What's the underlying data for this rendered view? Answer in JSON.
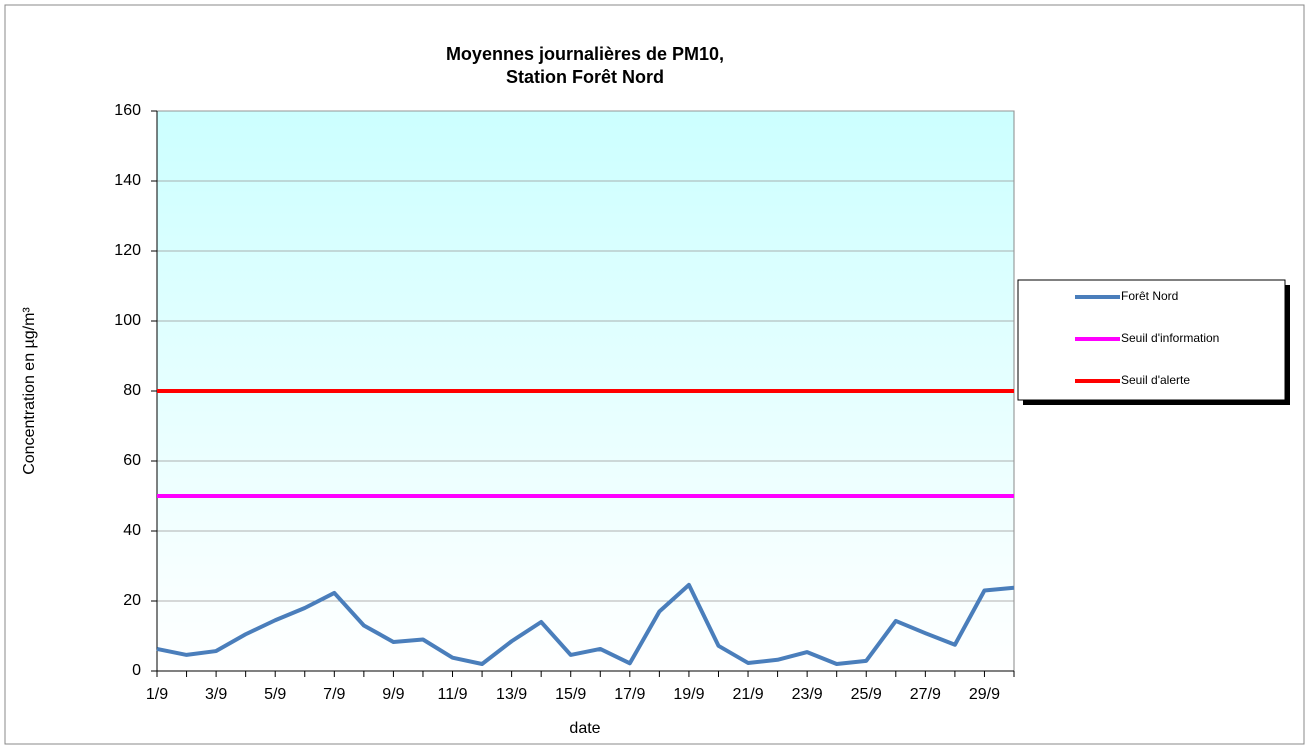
{
  "chart_data": {
    "type": "line",
    "title": [
      "Moyennes journalières de PM10,",
      "Station Forêt Nord"
    ],
    "x_label": "date",
    "y_label": "Concentration en µg/m³",
    "categories": [
      "1/9",
      null,
      "3/9",
      null,
      "5/9",
      null,
      "7/9",
      null,
      "9/9",
      null,
      "11/9",
      null,
      "13/9",
      null,
      "15/9",
      null,
      "17/9",
      null,
      "19/9",
      null,
      "21/9",
      null,
      "23/9",
      null,
      "25/9",
      null,
      "27/9",
      null,
      "29/9",
      null
    ],
    "series": [
      {
        "name": "Forêt Nord",
        "color": "#4a7ebb",
        "values": [
          6.3,
          4.6,
          5.7,
          10.5,
          14.5,
          18,
          22.3,
          13,
          8.3,
          9,
          3.8,
          2,
          8.5,
          14,
          4.6,
          6.3,
          2.2,
          17,
          24.6,
          7.2,
          2.3,
          3.2,
          5.4,
          2,
          2.9,
          14.3,
          10.8,
          7.5,
          23,
          23.8
        ]
      },
      {
        "name": "Seuil d'information",
        "color": "#ff00ff",
        "values": [
          50,
          50,
          50,
          50,
          50,
          50,
          50,
          50,
          50,
          50,
          50,
          50,
          50,
          50,
          50,
          50,
          50,
          50,
          50,
          50,
          50,
          50,
          50,
          50,
          50,
          50,
          50,
          50,
          50,
          50
        ]
      },
      {
        "name": "Seuil d'alerte",
        "color": "#ff0000",
        "values": [
          80,
          80,
          80,
          80,
          80,
          80,
          80,
          80,
          80,
          80,
          80,
          80,
          80,
          80,
          80,
          80,
          80,
          80,
          80,
          80,
          80,
          80,
          80,
          80,
          80,
          80,
          80,
          80,
          80,
          80
        ]
      }
    ],
    "ylim": [
      0,
      160
    ],
    "yticks": [
      0,
      20,
      40,
      60,
      80,
      100,
      120,
      140,
      160
    ],
    "grid": true
  }
}
